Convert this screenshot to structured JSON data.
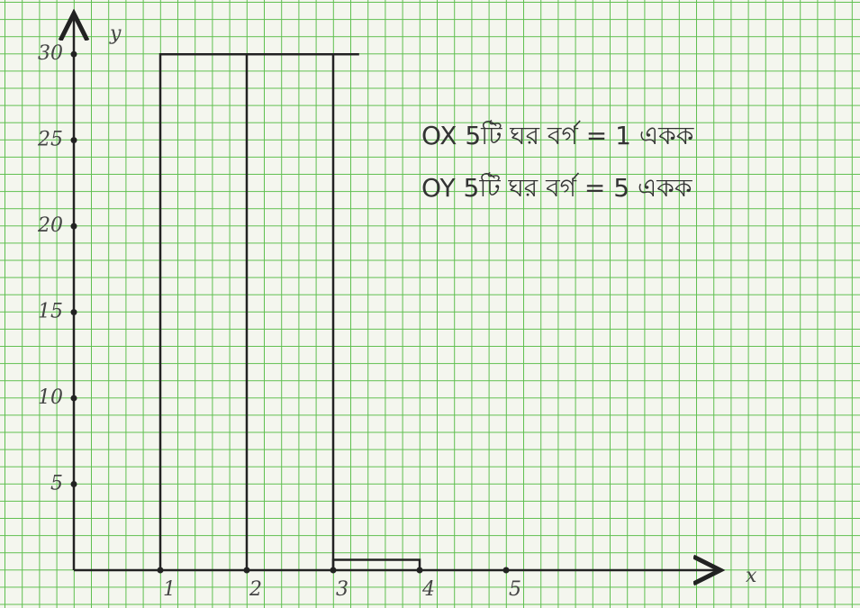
{
  "chart_data": {
    "type": "line",
    "x_label": "x",
    "y_label": "y",
    "annotations": [
      "OX 5টি ঘর বর্গ = 1 একক",
      "OY 5টি ঘর বর্গ = 5 একক"
    ],
    "xlim": [
      0,
      7.5
    ],
    "ylim": [
      0,
      32
    ],
    "xticks": [
      1,
      2,
      3,
      4,
      5
    ],
    "yticks": [
      5,
      10,
      15,
      20,
      25,
      30
    ],
    "series": [
      {
        "color": "#222222",
        "x": [
          1,
          1,
          3.3
        ],
        "values": [
          0,
          30,
          30
        ]
      },
      {
        "color": "#222222",
        "x": [
          2,
          2
        ],
        "values": [
          0,
          30
        ]
      },
      {
        "color": "#222222",
        "x": [
          3,
          3
        ],
        "values": [
          0,
          30
        ]
      },
      {
        "color": "#222222",
        "x": [
          3,
          3,
          4,
          4
        ],
        "values": [
          0,
          0.6,
          0.6,
          0
        ]
      }
    ]
  }
}
